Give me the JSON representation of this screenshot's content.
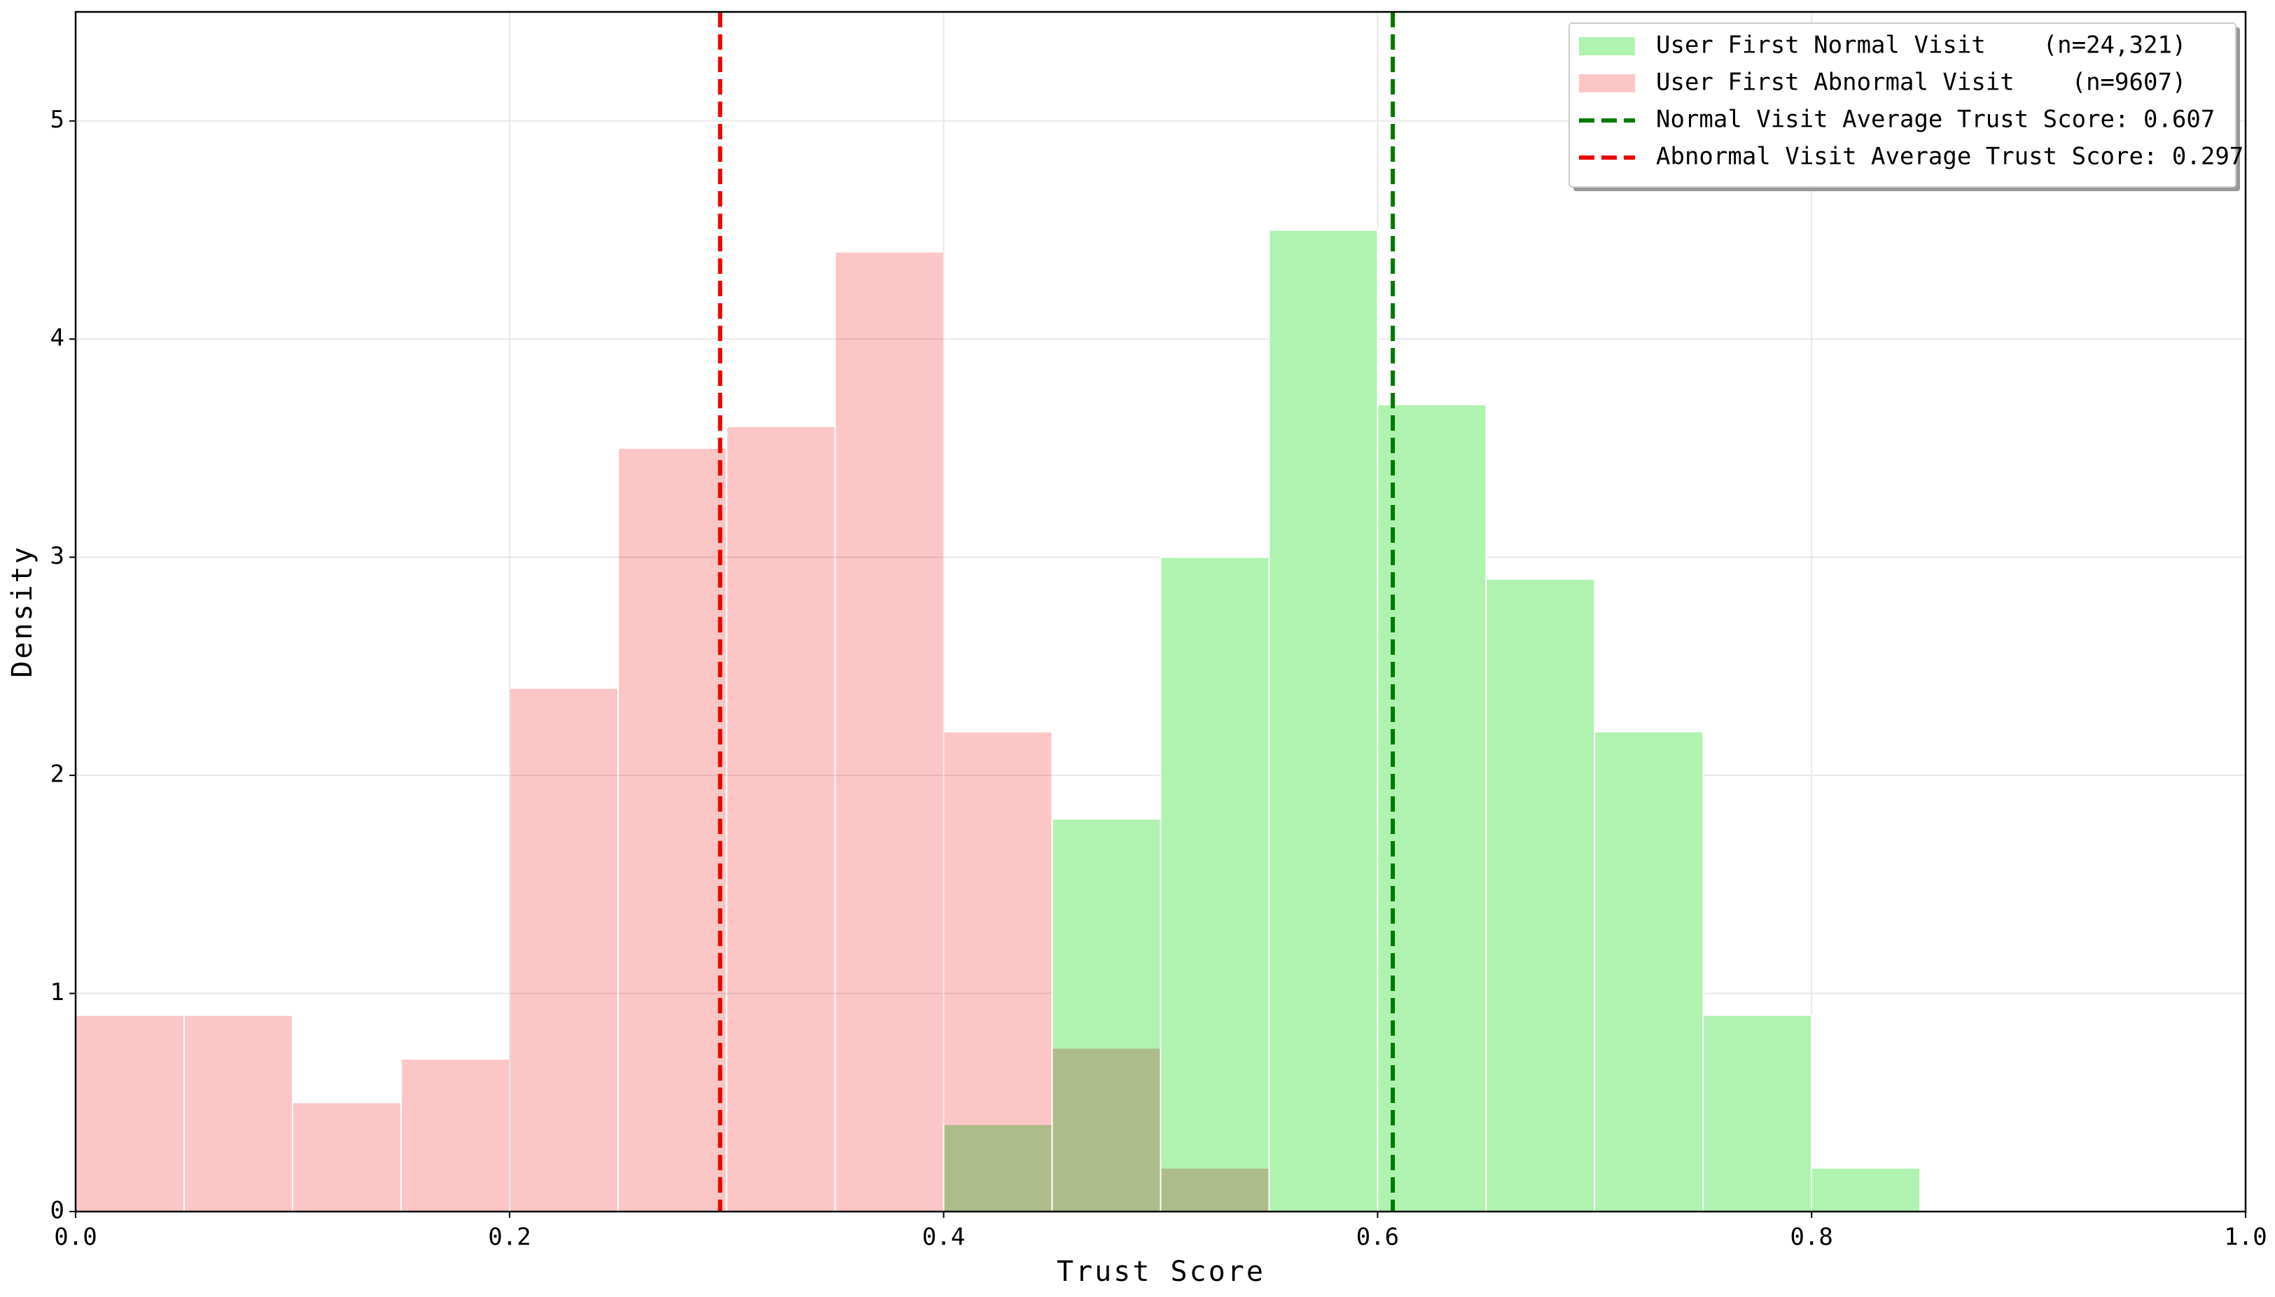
{
  "chart_data": {
    "type": "histogram",
    "xlabel": "Trust Score",
    "ylabel": "Density",
    "xlim": [
      0,
      1
    ],
    "ylim": [
      0,
      5.5
    ],
    "xticks": [
      {
        "value": 0,
        "label": "0.0"
      },
      0.2,
      0.4,
      0.6,
      0.8,
      {
        "value": 1,
        "label": "1.0"
      }
    ],
    "yticks": [
      0,
      1,
      2,
      3,
      4,
      5
    ],
    "grid": true,
    "legend": "upper right",
    "series": [
      {
        "name": "User First Normal Visit    (n=24,321)",
        "color": "#b0f2b0",
        "bins": [
          0.4,
          0.45,
          0.5,
          0.55,
          0.6,
          0.65,
          0.7,
          0.75,
          0.8,
          0.85
        ],
        "values": [
          0.4,
          1.8,
          3.0,
          4.5,
          3.7,
          2.9,
          2.2,
          0.9,
          0.2
        ]
      },
      {
        "name": "User First Abnormal Visit    (n=9607)",
        "color": "#fcc6c6",
        "bins": [
          0,
          0.05,
          0.1,
          0.15,
          0.2,
          0.25,
          0.3,
          0.35,
          0.4,
          0.45,
          0.5,
          0.55
        ],
        "values": [
          0.9,
          0.9,
          0.5,
          0.7,
          2.4,
          3.5,
          3.6,
          4.4,
          2.2,
          0.75,
          0.2
        ]
      }
    ],
    "vlines": [
      {
        "name": "Normal Visit Average Trust Score: 0.607",
        "x": 0.607,
        "color": "#007a00"
      },
      {
        "name": "Abnormal Visit Average Trust Score: 0.297",
        "x": 0.297,
        "color": "#ee0000"
      }
    ]
  }
}
